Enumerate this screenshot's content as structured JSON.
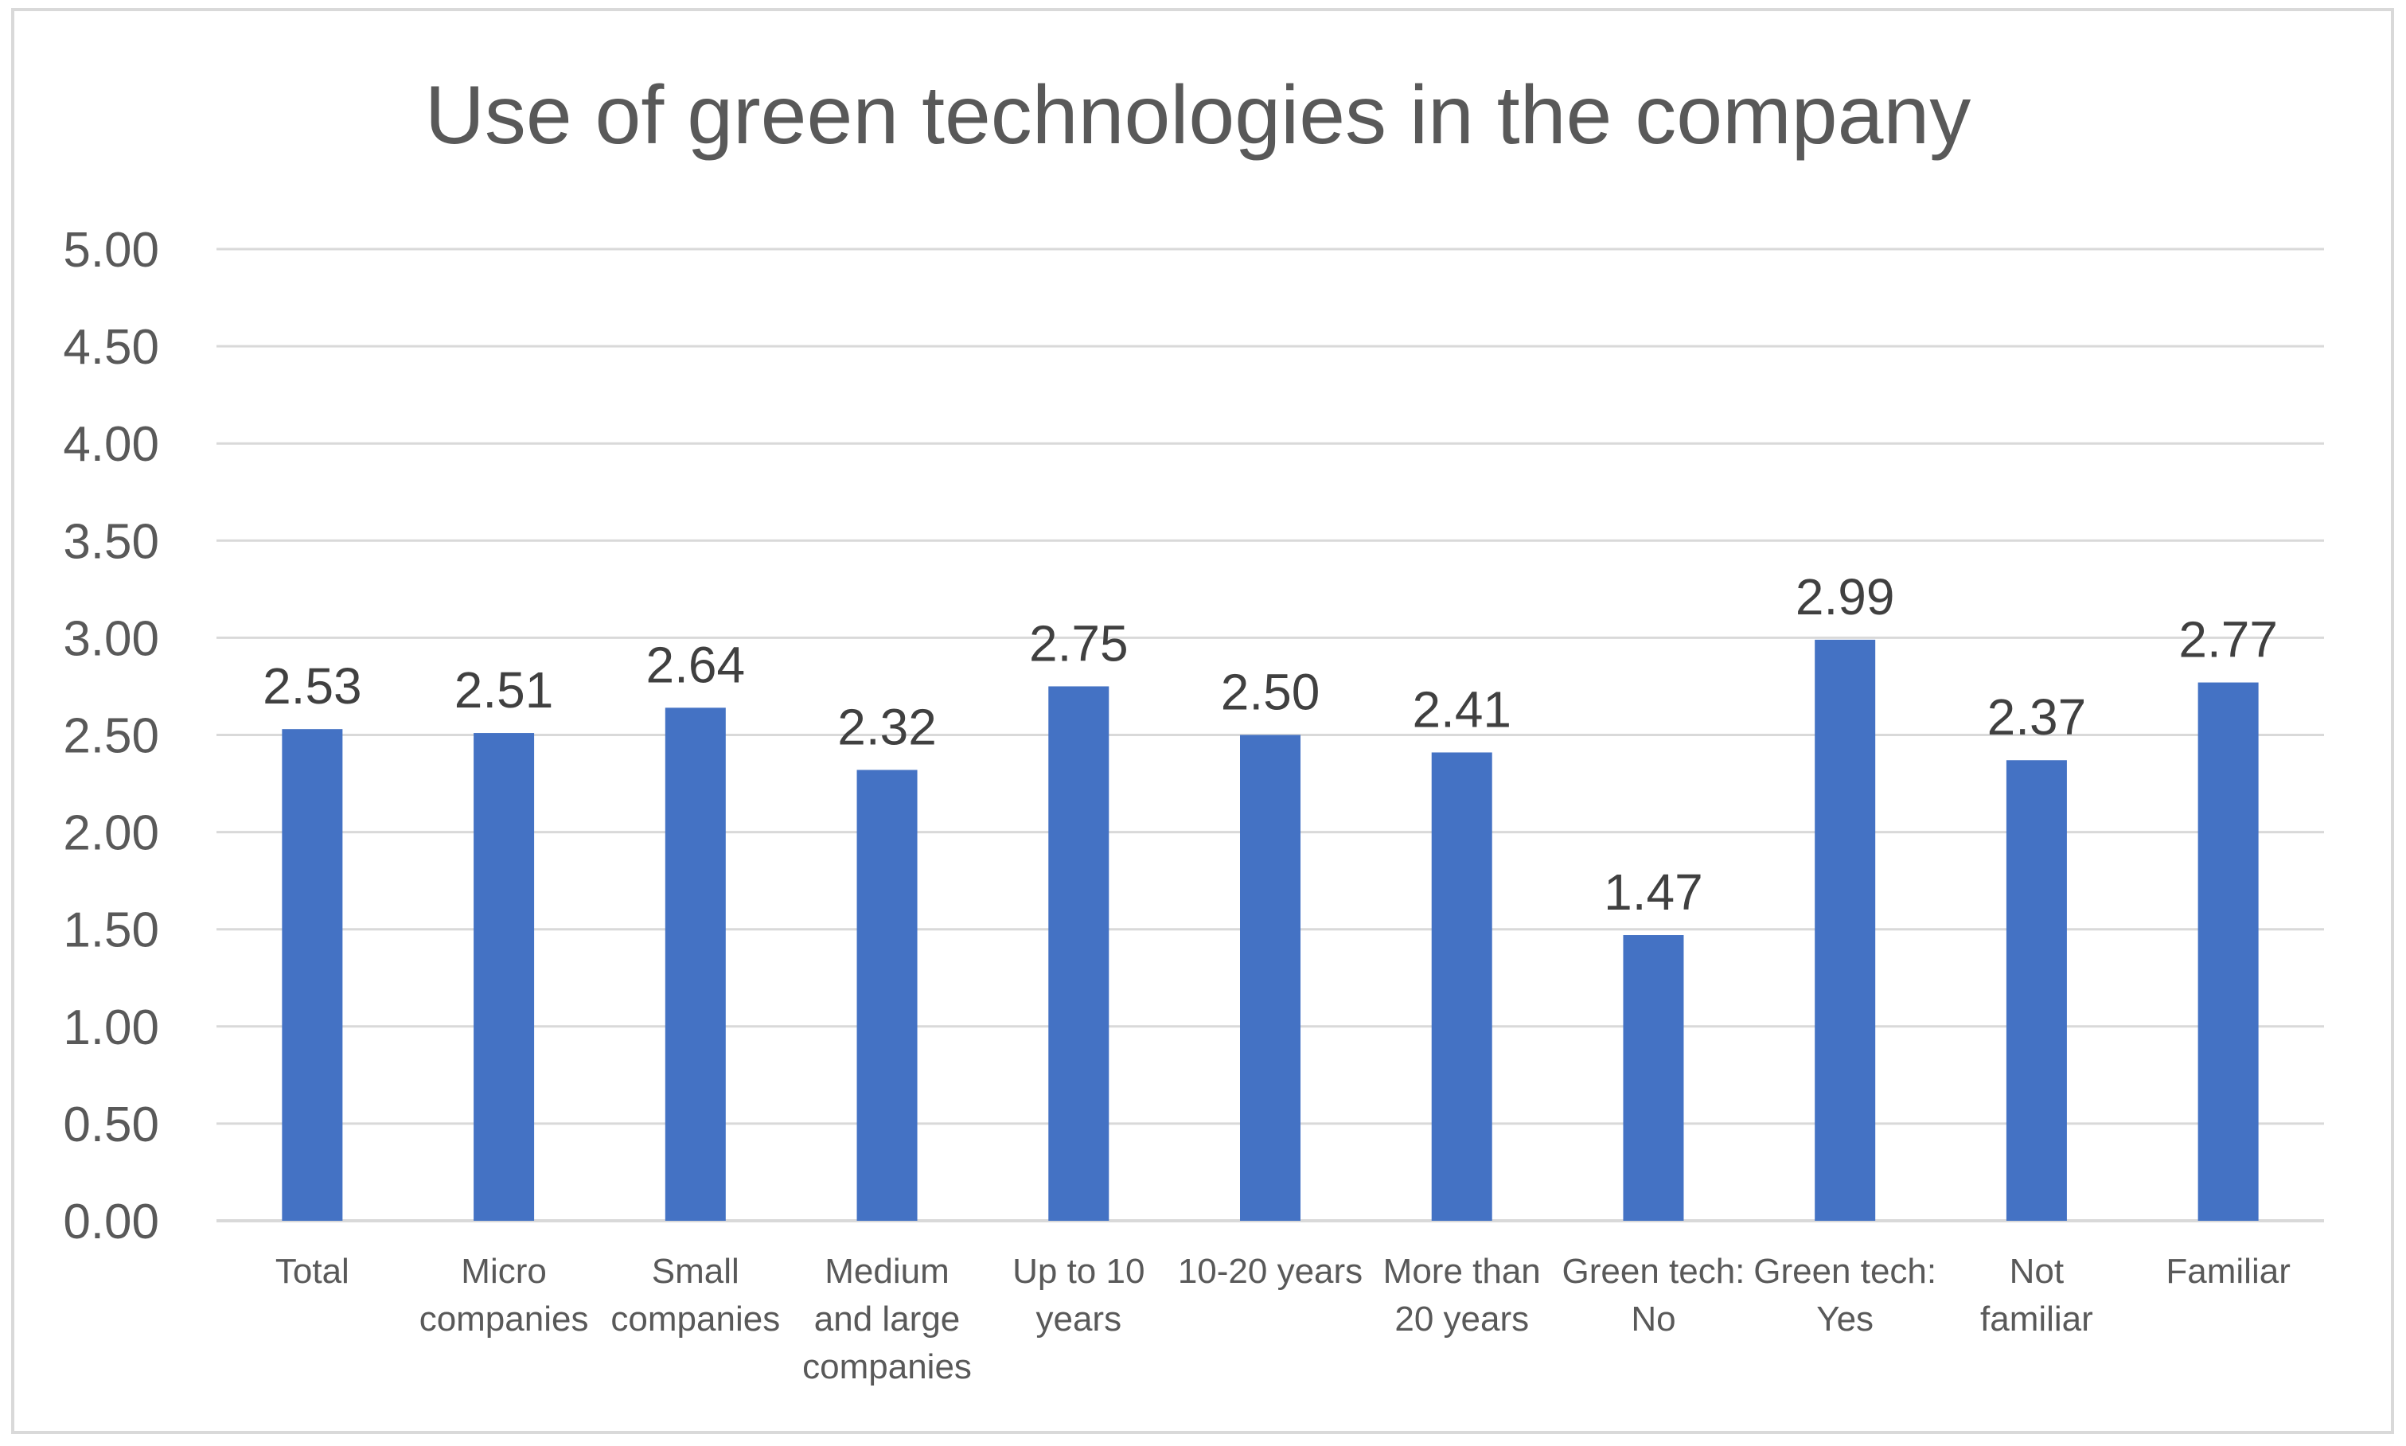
{
  "chart_data": {
    "type": "bar",
    "title": "Use of green technologies in the company",
    "xlabel": "",
    "ylabel": "",
    "ylim": [
      0,
      5
    ],
    "yticks": [
      0,
      0.5,
      1,
      1.5,
      2,
      2.5,
      3,
      3.5,
      4,
      4.5,
      5
    ],
    "ytick_labels": [
      "0.00",
      "0.50",
      "1.00",
      "1.50",
      "2.00",
      "2.50",
      "3.00",
      "3.50",
      "4.00",
      "4.50",
      "5.00"
    ],
    "grid": true,
    "legend": "none",
    "bar_color": "#4472C4",
    "categories": [
      [
        "Total"
      ],
      [
        "Micro",
        "companies"
      ],
      [
        "Small",
        "companies"
      ],
      [
        "Medium",
        "and large",
        "companies"
      ],
      [
        "Up to 10",
        "years"
      ],
      [
        "10-20 years"
      ],
      [
        "More than",
        "20 years"
      ],
      [
        "Green tech:",
        "No"
      ],
      [
        "Green tech:",
        "Yes"
      ],
      [
        "Not",
        "familiar"
      ],
      [
        "Familiar"
      ]
    ],
    "values": [
      2.53,
      2.51,
      2.64,
      2.32,
      2.75,
      2.5,
      2.41,
      1.47,
      2.99,
      2.37,
      2.77
    ],
    "value_labels": [
      "2.53",
      "2.51",
      "2.64",
      "2.32",
      "2.75",
      "2.50",
      "2.41",
      "1.47",
      "2.99",
      "2.37",
      "2.77"
    ]
  }
}
